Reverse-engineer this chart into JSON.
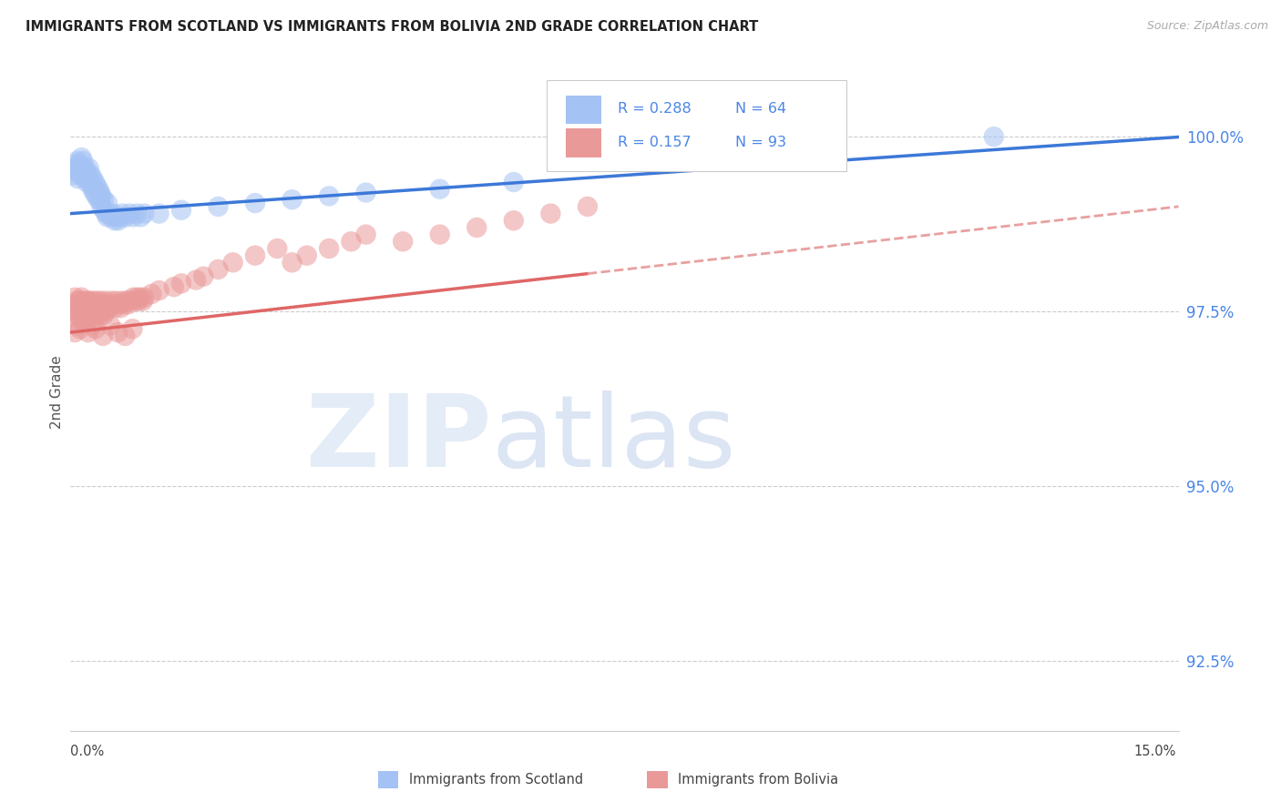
{
  "title": "IMMIGRANTS FROM SCOTLAND VS IMMIGRANTS FROM BOLIVIA 2ND GRADE CORRELATION CHART",
  "source": "Source: ZipAtlas.com",
  "ylabel": "2nd Grade",
  "yticks": [
    92.5,
    95.0,
    97.5,
    100.0
  ],
  "ytick_labels": [
    "92.5%",
    "95.0%",
    "97.5%",
    "100.0%"
  ],
  "xmin": 0.0,
  "xmax": 15.0,
  "ymin": 91.5,
  "ymax": 101.2,
  "legend_R_scotland": "R = 0.288",
  "legend_N_scotland": "N = 64",
  "legend_R_bolivia": "R = 0.157",
  "legend_N_bolivia": "N = 93",
  "scotland_color": "#a4c2f4",
  "bolivia_color": "#ea9999",
  "scotland_line_color": "#3c78d8",
  "bolivia_line_color": "#e06666",
  "scotland_intercept": 98.9,
  "scotland_slope": 0.073,
  "bolivia_intercept": 97.2,
  "bolivia_slope": 0.12,
  "bolivia_solid_end": 7.0,
  "scotland_x": [
    0.05,
    0.05,
    0.07,
    0.08,
    0.09,
    0.1,
    0.1,
    0.12,
    0.13,
    0.14,
    0.15,
    0.15,
    0.17,
    0.18,
    0.18,
    0.2,
    0.2,
    0.22,
    0.22,
    0.25,
    0.25,
    0.28,
    0.28,
    0.3,
    0.3,
    0.32,
    0.33,
    0.35,
    0.35,
    0.38,
    0.38,
    0.4,
    0.4,
    0.42,
    0.42,
    0.45,
    0.45,
    0.48,
    0.5,
    0.5,
    0.52,
    0.55,
    0.58,
    0.6,
    0.62,
    0.65,
    0.68,
    0.7,
    0.75,
    0.8,
    0.85,
    0.9,
    0.95,
    1.0,
    1.2,
    1.5,
    2.0,
    2.5,
    3.0,
    3.5,
    4.0,
    5.0,
    6.0,
    12.5
  ],
  "scotland_y": [
    99.55,
    99.45,
    99.6,
    99.5,
    99.65,
    99.4,
    99.55,
    99.5,
    99.6,
    99.45,
    99.7,
    99.55,
    99.65,
    99.45,
    99.5,
    99.4,
    99.55,
    99.35,
    99.5,
    99.4,
    99.55,
    99.3,
    99.45,
    99.25,
    99.4,
    99.2,
    99.35,
    99.15,
    99.3,
    99.1,
    99.25,
    99.1,
    99.2,
    99.0,
    99.15,
    98.95,
    99.1,
    98.9,
    98.85,
    99.05,
    98.9,
    98.85,
    98.9,
    98.8,
    98.85,
    98.8,
    98.85,
    98.9,
    98.85,
    98.9,
    98.85,
    98.9,
    98.85,
    98.9,
    98.9,
    98.95,
    99.0,
    99.05,
    99.1,
    99.15,
    99.2,
    99.25,
    99.35,
    100.0
  ],
  "bolivia_x": [
    0.04,
    0.05,
    0.06,
    0.08,
    0.09,
    0.1,
    0.11,
    0.12,
    0.13,
    0.14,
    0.15,
    0.16,
    0.17,
    0.18,
    0.19,
    0.2,
    0.21,
    0.22,
    0.23,
    0.24,
    0.25,
    0.26,
    0.27,
    0.28,
    0.29,
    0.3,
    0.31,
    0.32,
    0.33,
    0.35,
    0.36,
    0.38,
    0.39,
    0.4,
    0.41,
    0.42,
    0.43,
    0.45,
    0.47,
    0.48,
    0.5,
    0.52,
    0.55,
    0.58,
    0.6,
    0.62,
    0.65,
    0.68,
    0.7,
    0.72,
    0.75,
    0.78,
    0.8,
    0.85,
    0.88,
    0.9,
    0.92,
    0.95,
    0.98,
    1.0,
    1.1,
    1.2,
    1.4,
    1.5,
    1.7,
    1.8,
    2.0,
    2.2,
    2.5,
    2.8,
    3.0,
    3.2,
    3.5,
    3.8,
    4.0,
    4.5,
    5.0,
    5.5,
    6.0,
    6.5,
    7.0,
    0.06,
    0.09,
    0.13,
    0.19,
    0.24,
    0.29,
    0.34,
    0.44,
    0.54,
    0.64,
    0.74,
    0.84
  ],
  "bolivia_y": [
    97.6,
    97.5,
    97.7,
    97.55,
    97.65,
    97.45,
    97.6,
    97.5,
    97.65,
    97.4,
    97.7,
    97.55,
    97.6,
    97.45,
    97.65,
    97.5,
    97.6,
    97.4,
    97.65,
    97.5,
    97.6,
    97.45,
    97.65,
    97.5,
    97.6,
    97.4,
    97.65,
    97.5,
    97.6,
    97.45,
    97.65,
    97.5,
    97.6,
    97.45,
    97.65,
    97.5,
    97.6,
    97.45,
    97.65,
    97.5,
    97.6,
    97.55,
    97.65,
    97.6,
    97.55,
    97.65,
    97.6,
    97.55,
    97.65,
    97.6,
    97.65,
    97.6,
    97.65,
    97.7,
    97.65,
    97.7,
    97.65,
    97.7,
    97.65,
    97.7,
    97.75,
    97.8,
    97.85,
    97.9,
    97.95,
    98.0,
    98.1,
    98.2,
    98.3,
    98.4,
    98.2,
    98.3,
    98.4,
    98.5,
    98.6,
    98.5,
    98.6,
    98.7,
    98.8,
    98.9,
    99.0,
    97.2,
    97.3,
    97.25,
    97.35,
    97.2,
    97.3,
    97.25,
    97.15,
    97.3,
    97.2,
    97.15,
    97.25
  ]
}
